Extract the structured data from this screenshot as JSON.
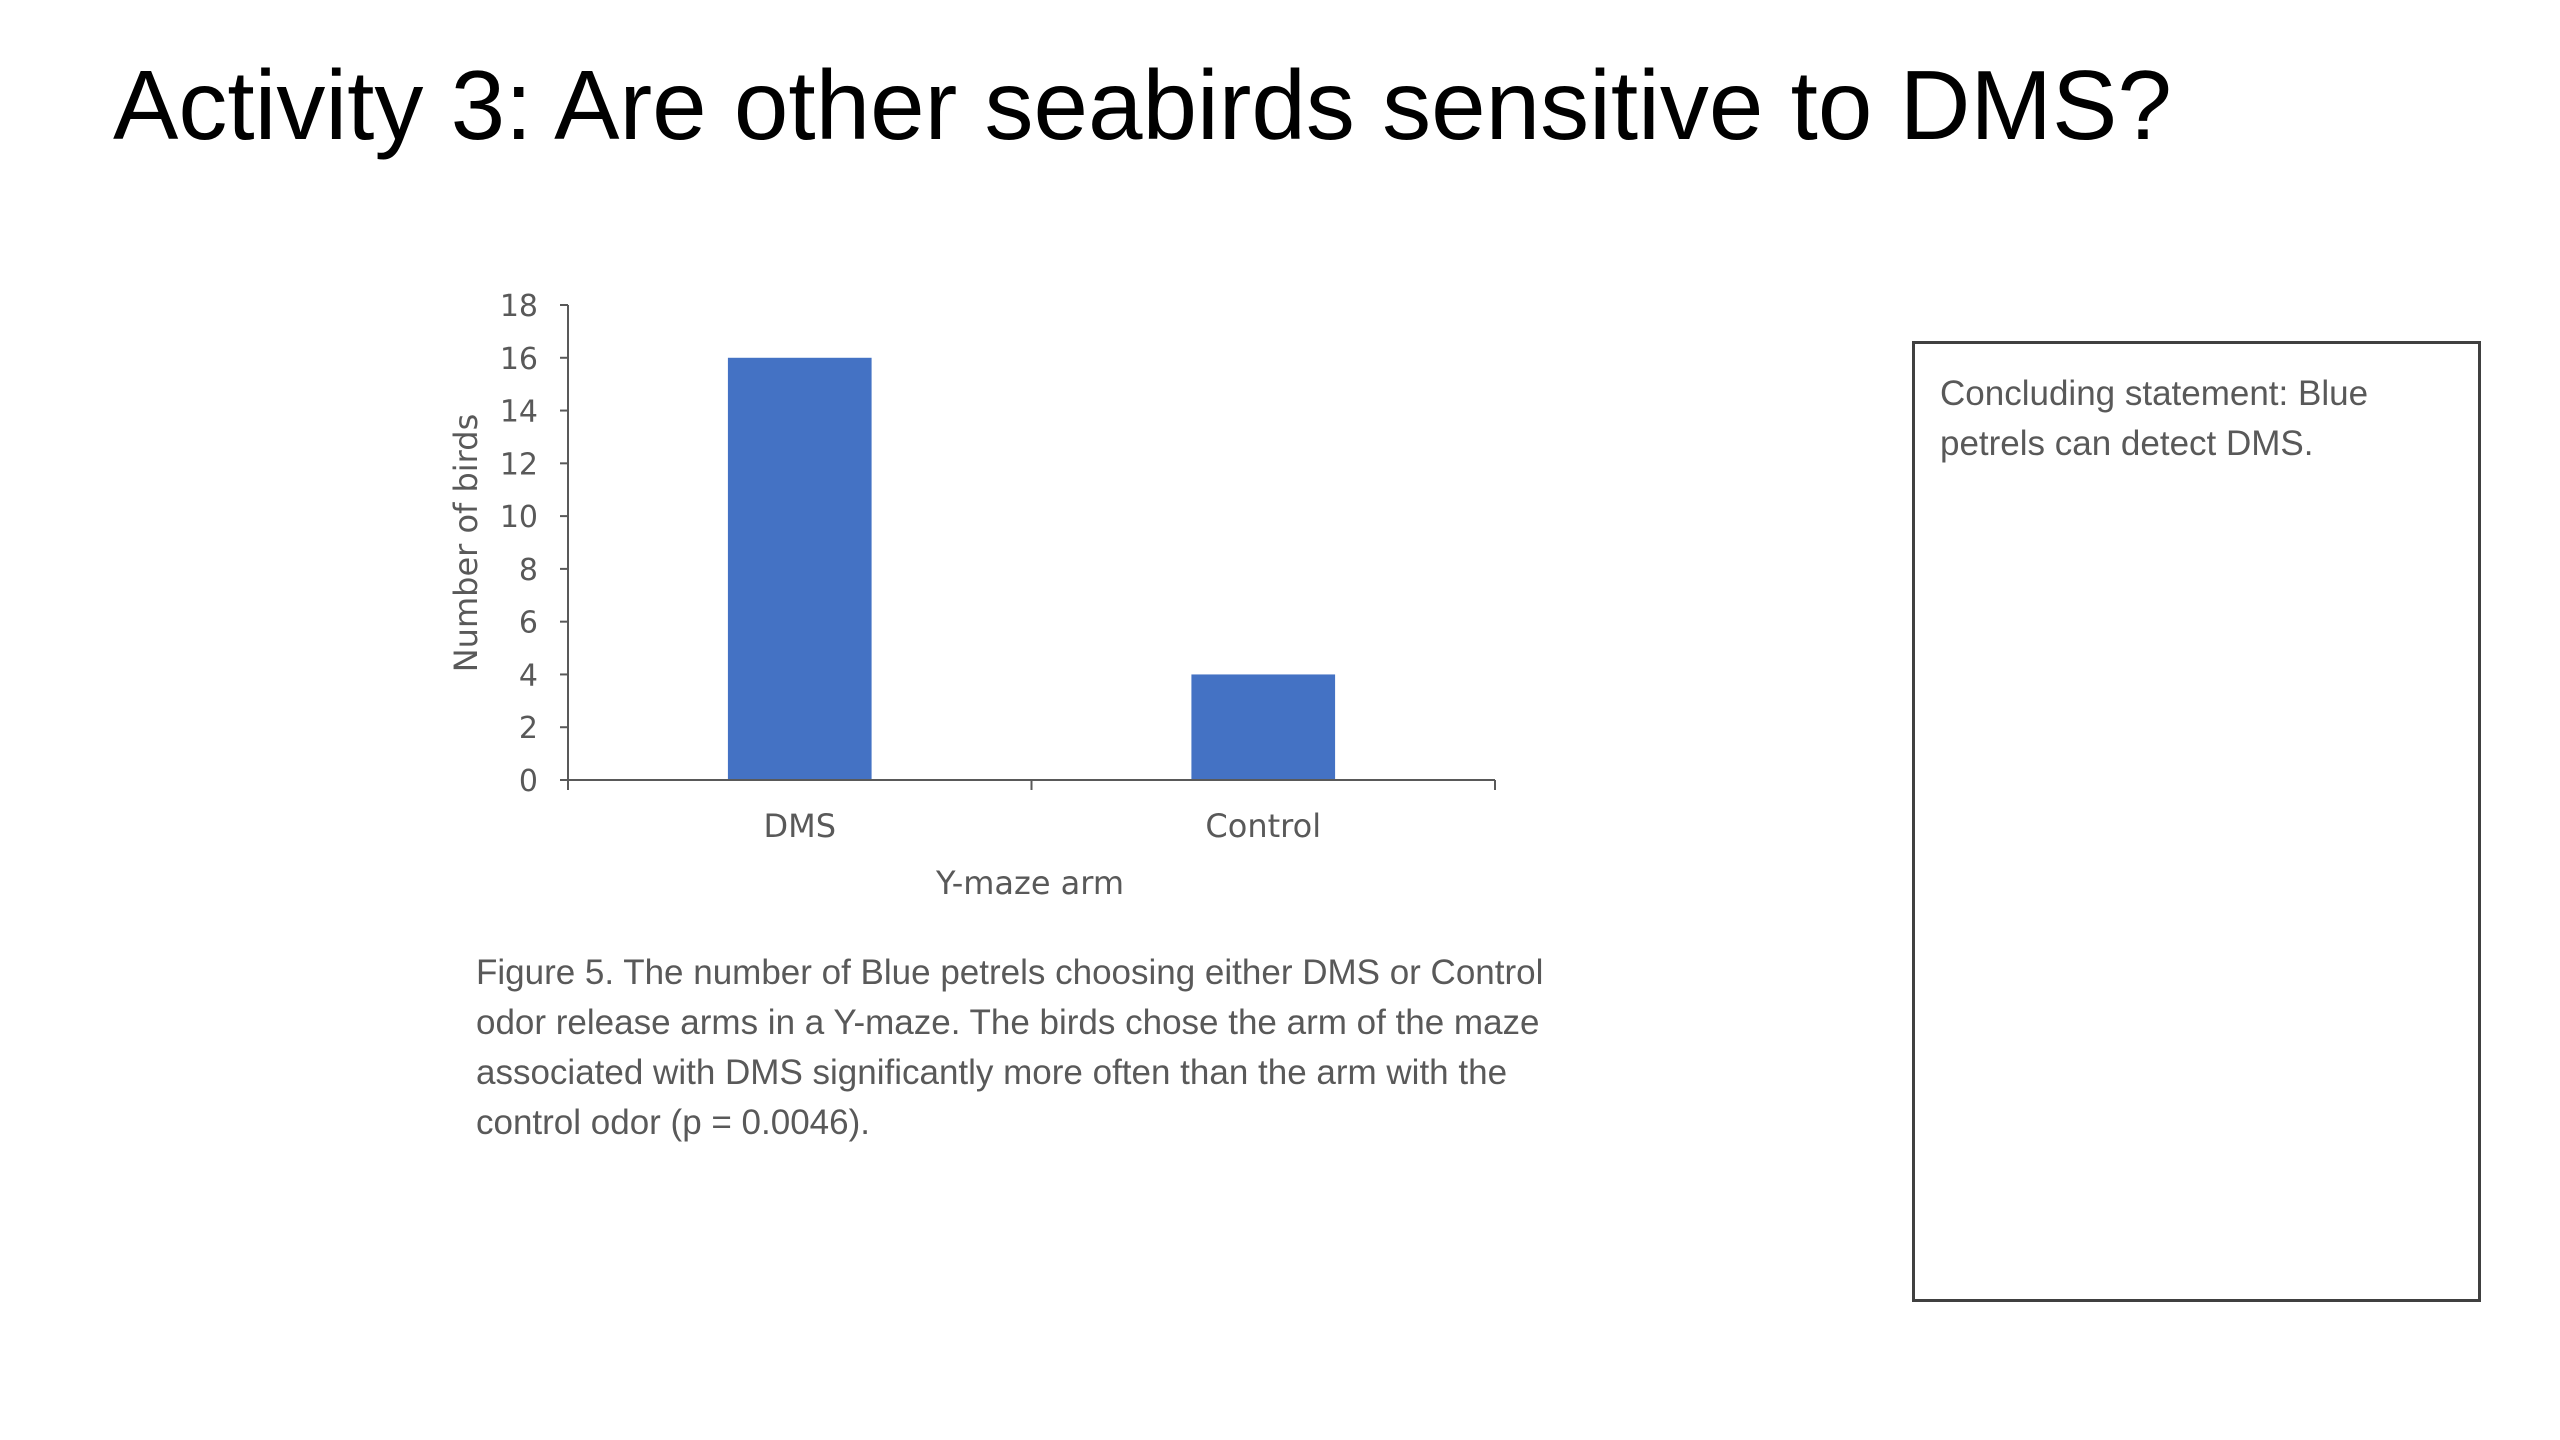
{
  "slide": {
    "title": "Activity 3: Are other seabirds sensitive to DMS?"
  },
  "chart_data": {
    "type": "bar",
    "categories": [
      "DMS",
      "Control"
    ],
    "values": [
      16,
      4
    ],
    "xlabel": "Y-maze arm",
    "ylabel": "Number of birds",
    "ylim": [
      0,
      18
    ],
    "yticks": [
      0,
      2,
      4,
      6,
      8,
      10,
      12,
      14,
      16,
      18
    ],
    "grid": false,
    "legend": "none",
    "bar_color": "#4472C4"
  },
  "caption": {
    "line1": "Figure 5.  The number of Blue petrels choosing either DMS or Control",
    "line2": "odor release arms in a Y-maze.  The birds chose the arm of the maze",
    "line3": "associated with DMS significantly more often than the arm with the",
    "line4": "control odor (p = 0.0046)."
  },
  "conclusion": {
    "text": "Concluding statement:  Blue petrels can detect DMS."
  }
}
